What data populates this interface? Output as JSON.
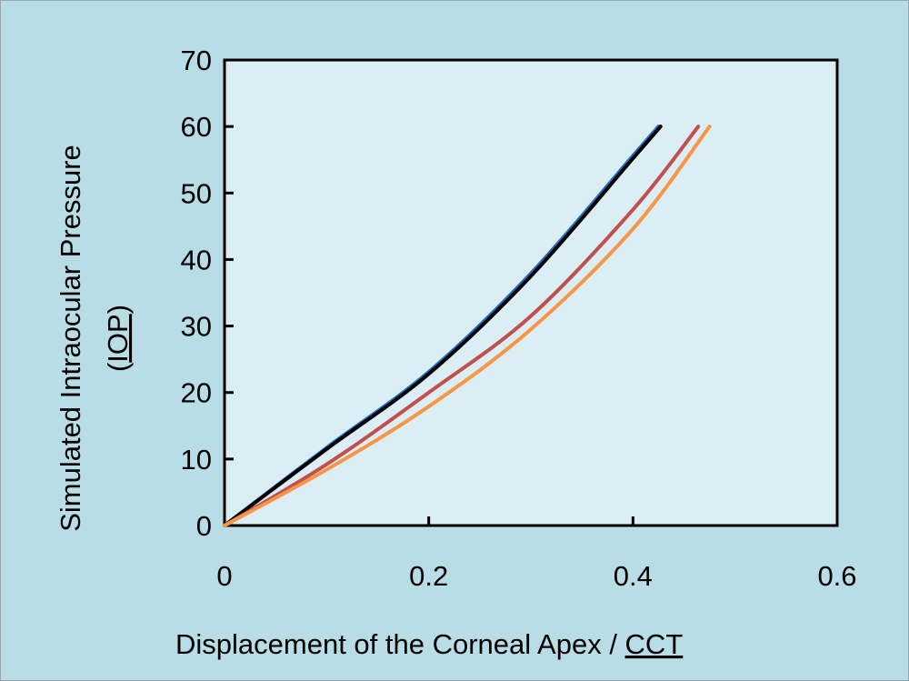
{
  "chart_data": {
    "type": "line",
    "title": "",
    "xlabel": "Displacement of the Corneal Apex / CCT",
    "xlabel_main": "Displacement of the Corneal Apex / ",
    "xlabel_flagged": "CCT",
    "ylabel_line1": "Simulated Intraocular Pressure",
    "ylabel_line2_open": "(",
    "ylabel_line2_flagged": "IOP",
    "ylabel_line2_close": ")",
    "xlim": [
      0,
      0.6
    ],
    "ylim": [
      0,
      70
    ],
    "xticks": [
      "0",
      "0.2",
      "0.4",
      "0.6"
    ],
    "xtick_values": [
      0,
      0.2,
      0.4,
      0.6
    ],
    "yticks": [
      "0",
      "10",
      "20",
      "30",
      "40",
      "50",
      "60",
      "70"
    ],
    "ytick_values": [
      0,
      10,
      20,
      30,
      40,
      50,
      60,
      70
    ],
    "grid": false,
    "legend": "none",
    "series": [
      {
        "name": "blue",
        "color": "#1f6fbf",
        "x": [
          0,
          0.1,
          0.2,
          0.3,
          0.4,
          0.425
        ],
        "y": [
          0,
          11.7,
          23.1,
          37.9,
          55.6,
          60
        ]
      },
      {
        "name": "black",
        "color": "#000000",
        "x": [
          0,
          0.1,
          0.2,
          0.3,
          0.4,
          0.427
        ],
        "y": [
          0,
          11.5,
          22.8,
          37.5,
          55.2,
          60
        ]
      },
      {
        "name": "red",
        "color": "#c0504d",
        "x": [
          0,
          0.1,
          0.2,
          0.3,
          0.4,
          0.464
        ],
        "y": [
          0,
          9.2,
          20,
          31.5,
          47.5,
          60
        ]
      },
      {
        "name": "orange",
        "color": "#f79646",
        "x": [
          0,
          0.1,
          0.2,
          0.3,
          0.4,
          0.475
        ],
        "y": [
          0,
          8.4,
          17.9,
          29.5,
          44.6,
          60
        ]
      }
    ]
  }
}
